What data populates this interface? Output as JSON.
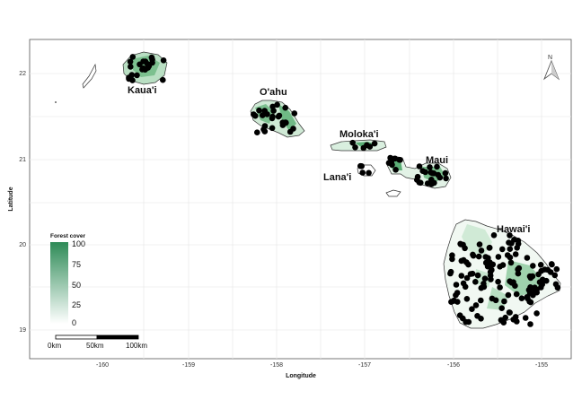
{
  "map": {
    "ylabel": "Latitude",
    "xlabel": "Longitude",
    "xticks": [
      "-160",
      "-159",
      "-158",
      "-157",
      "-156",
      "-155"
    ],
    "yticks": [
      "22",
      "21",
      "20",
      "19"
    ],
    "xlim": [
      -160.8,
      -154.7
    ],
    "ylim": [
      18.8,
      22.4
    ],
    "grid": true,
    "islands": [
      {
        "id": "kauai",
        "label": "Kaua'i"
      },
      {
        "id": "oahu",
        "label": "O'ahu"
      },
      {
        "id": "molokai",
        "label": "Moloka'i"
      },
      {
        "id": "lanai",
        "label": "Lana'i"
      },
      {
        "id": "maui",
        "label": "Maui"
      },
      {
        "id": "hawaii",
        "label": "Hawai'i"
      }
    ]
  },
  "legend": {
    "title": "Forest cover",
    "labels": [
      "100",
      "75",
      "50",
      "25",
      "0"
    ],
    "placement": "bottom-left"
  },
  "scalebar": {
    "labels": [
      "0km",
      "50km",
      "100km"
    ]
  },
  "north_arrow": {
    "label": "N"
  },
  "colors": {
    "forest_high": "#2e8b57",
    "forest_low": "#ffffff",
    "points": "#000000",
    "grid": "#e6e6e6",
    "coast": "#333333"
  }
}
